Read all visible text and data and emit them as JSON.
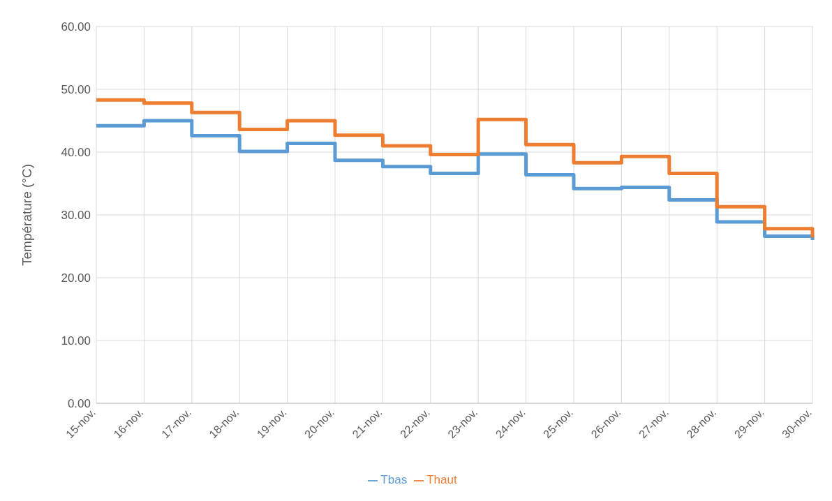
{
  "chart_data": {
    "type": "step",
    "ylabel": "Température (°C)",
    "categories": [
      "15-nov.",
      "16-nov.",
      "17-nov.",
      "18-nov.",
      "19-nov.",
      "20-nov.",
      "21-nov.",
      "22-nov.",
      "23-nov.",
      "24-nov.",
      "25-nov.",
      "26-nov.",
      "27-nov.",
      "28-nov.",
      "29-nov.",
      "30-nov."
    ],
    "series": [
      {
        "name": "Tbas",
        "color": "#5b9bd5",
        "values": [
          44.2,
          45.0,
          42.6,
          40.1,
          41.4,
          38.7,
          37.7,
          36.6,
          39.7,
          36.4,
          34.2,
          34.4,
          32.4,
          28.9,
          26.6,
          26.0
        ]
      },
      {
        "name": "Thaut",
        "color": "#ed7d31",
        "values": [
          48.3,
          47.8,
          46.3,
          43.6,
          45.0,
          42.7,
          41.0,
          39.6,
          45.2,
          41.2,
          38.3,
          39.3,
          36.6,
          31.3,
          27.8,
          26.4
        ]
      }
    ],
    "ylim": [
      0,
      60
    ],
    "yticks": [
      {
        "value": 0,
        "label": "0.00"
      },
      {
        "value": 10,
        "label": "10.00"
      },
      {
        "value": 20,
        "label": "20.00"
      },
      {
        "value": 30,
        "label": "30.00"
      },
      {
        "value": 40,
        "label": "40.00"
      },
      {
        "value": 50,
        "label": "50.00"
      },
      {
        "value": 60,
        "label": "60.00"
      }
    ],
    "grid": true,
    "legend": "bottom",
    "marker": "none",
    "line_style": "solid"
  }
}
